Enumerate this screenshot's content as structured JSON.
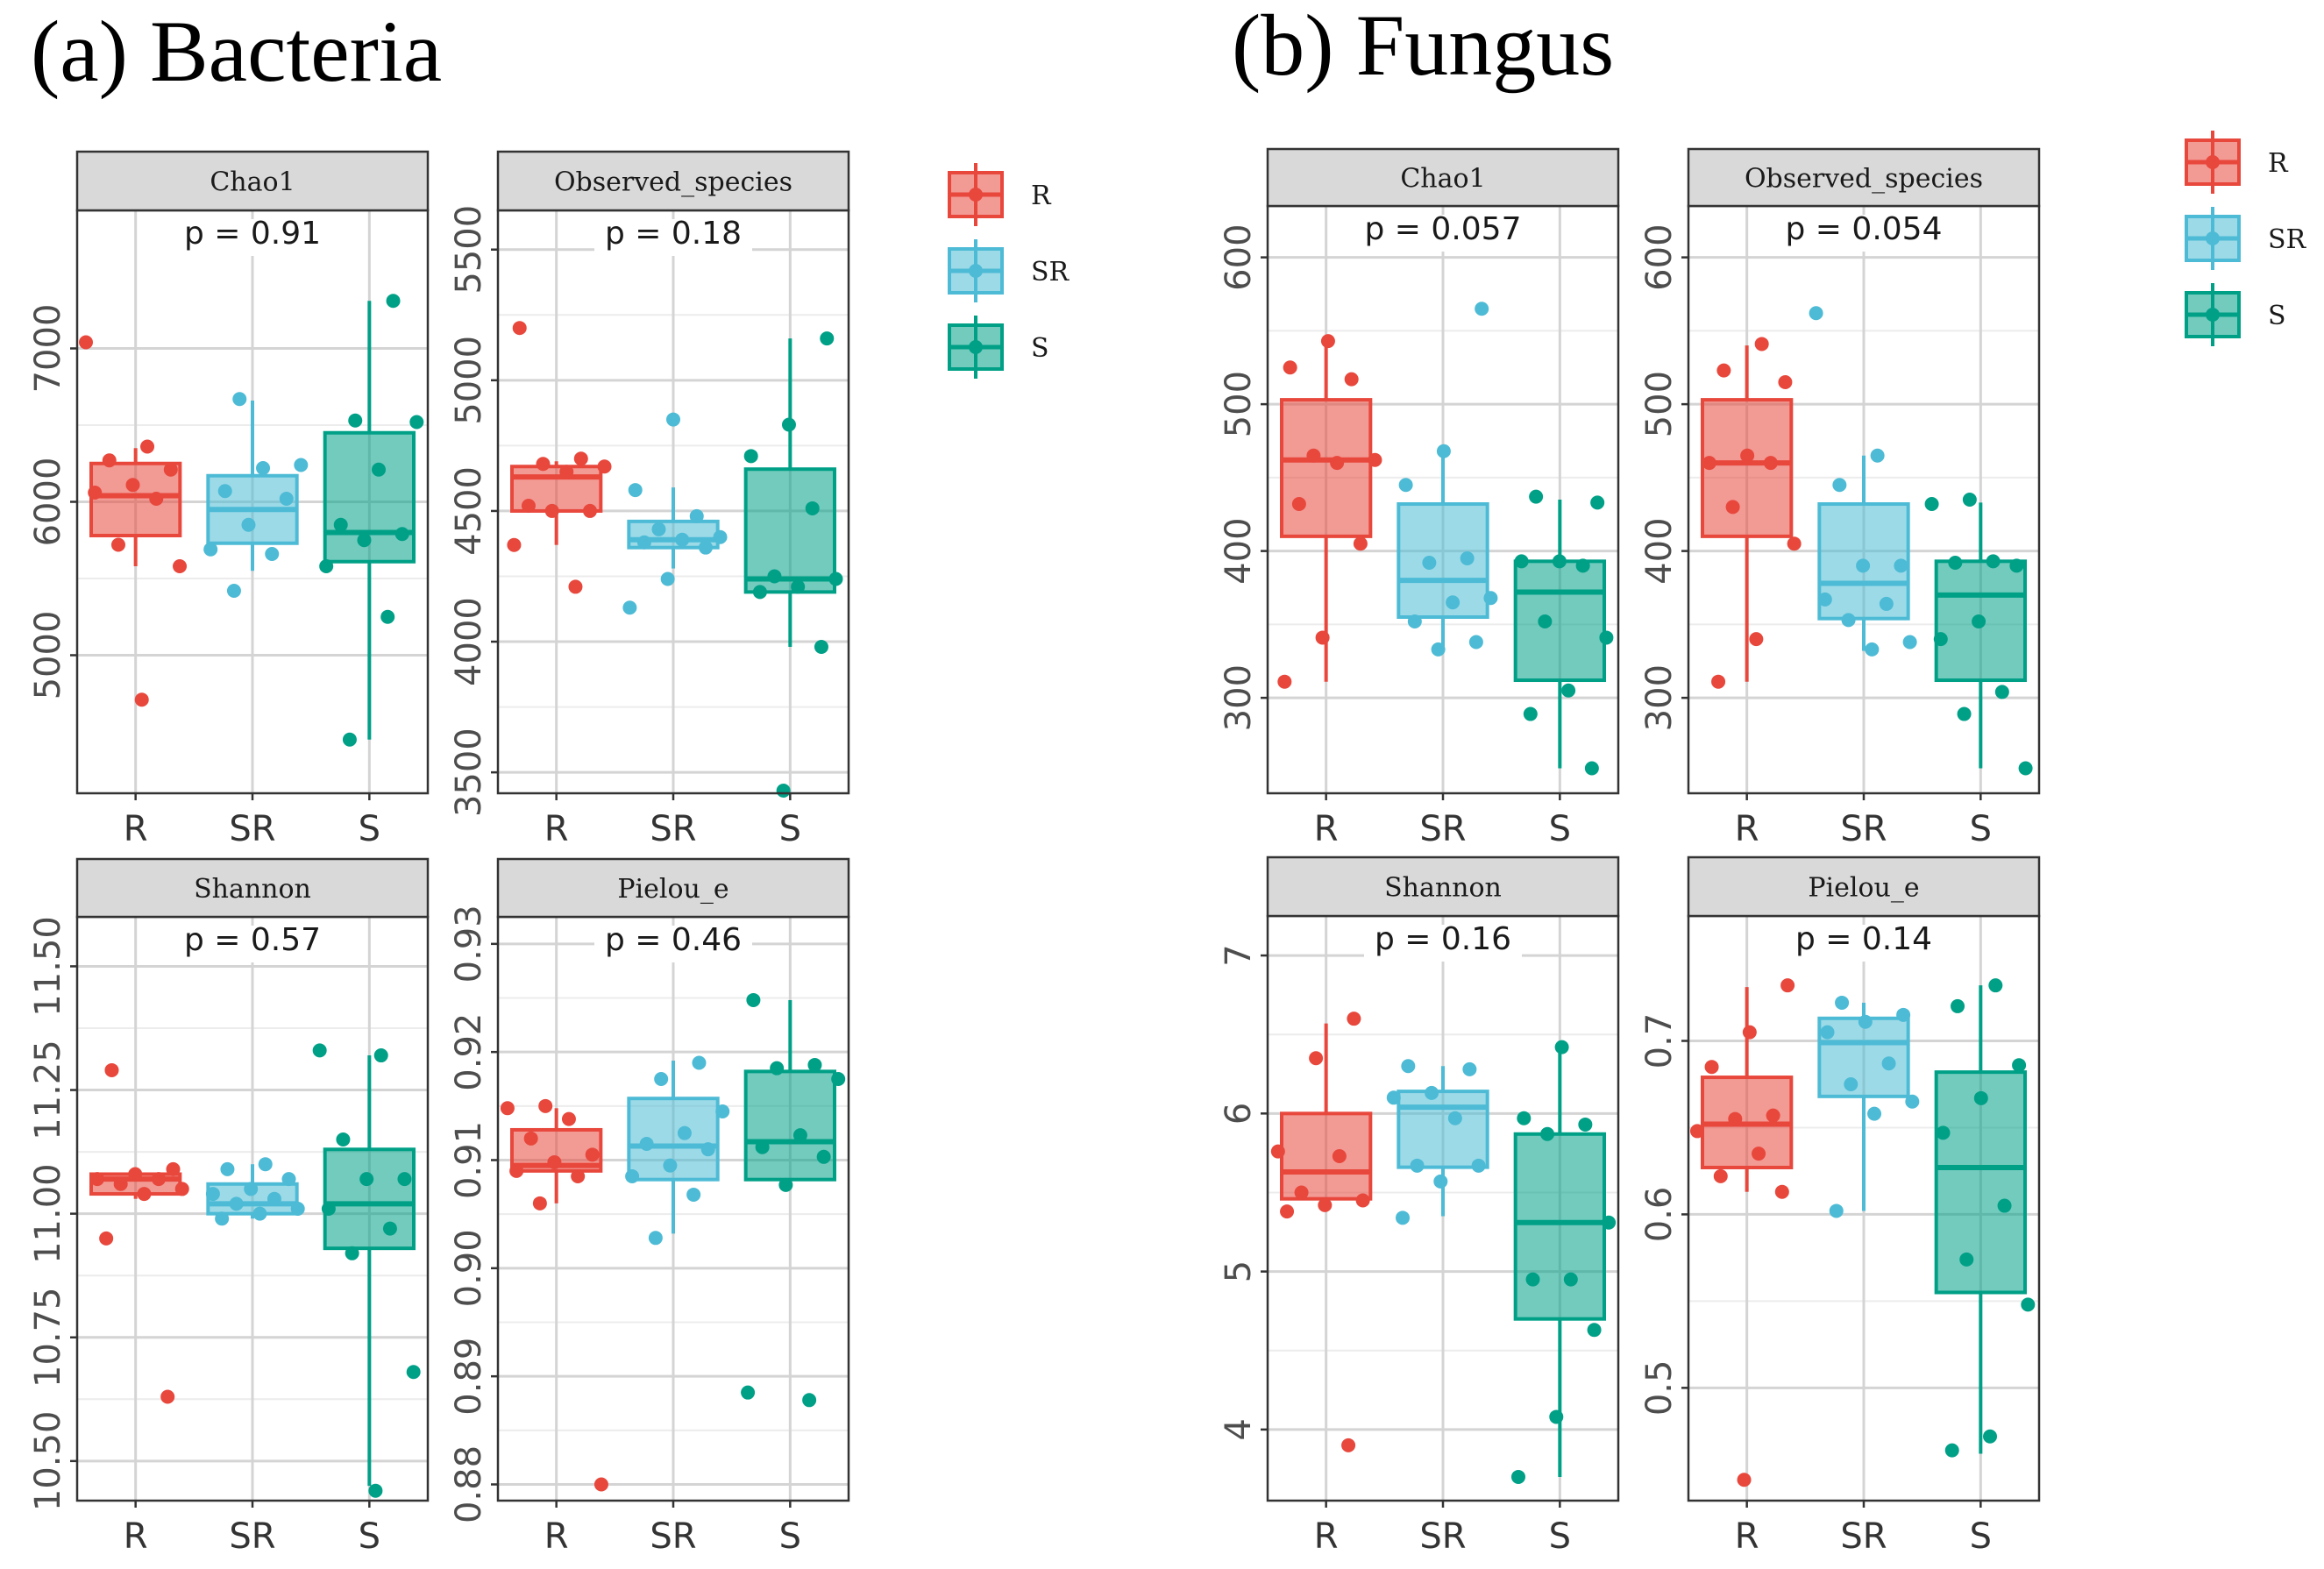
{
  "sections": [
    {
      "title": "(a) Bacteria"
    },
    {
      "title": "(b) Fungus"
    }
  ],
  "groups": [
    "R",
    "SR",
    "S"
  ],
  "colors": {
    "R": "#E8473C",
    "SR": "#4DBBD5",
    "S": "#00A087"
  },
  "legends": [
    {
      "entries": [
        "R",
        "SR",
        "S"
      ]
    },
    {
      "entries": [
        "R",
        "SR",
        "S"
      ]
    }
  ],
  "chart_data": [
    {
      "type": "box",
      "section": "(a) Bacteria",
      "title": "Chao1",
      "p_text": "p = 0.91",
      "categories": [
        "R",
        "SR",
        "S"
      ],
      "ylim": [
        4100,
        7900
      ],
      "yticks": [
        5000,
        6000,
        7000
      ],
      "ytick_labels": [
        "5000",
        "6000",
        "7000"
      ],
      "grid": true,
      "boxes": [
        {
          "group": "R",
          "lower_whisker": 5580,
          "q1": 5780,
          "median": 6040,
          "q3": 6250,
          "upper_whisker": 6350
        },
        {
          "group": "SR",
          "lower_whisker": 5550,
          "q1": 5730,
          "median": 5950,
          "q3": 6170,
          "upper_whisker": 6660
        },
        {
          "group": "S",
          "lower_whisker": 4450,
          "q1": 5610,
          "median": 5800,
          "q3": 6450,
          "upper_whisker": 7310
        }
      ],
      "points": {
        "R": [
          7040,
          6360,
          6270,
          6210,
          6110,
          6060,
          6020,
          5720,
          5580,
          4710
        ],
        "SR": [
          6670,
          6240,
          6220,
          6070,
          6020,
          5850,
          5690,
          5660,
          5420
        ],
        "S": [
          7310,
          6530,
          6520,
          6210,
          5850,
          5790,
          5750,
          5580,
          5250,
          4450
        ]
      }
    },
    {
      "type": "box",
      "section": "(a) Bacteria",
      "title": "Observed_species",
      "p_text": "p = 0.18",
      "categories": [
        "R",
        "SR",
        "S"
      ],
      "ylim": [
        3420,
        5650
      ],
      "yticks": [
        3500,
        4000,
        4500,
        5000,
        5500
      ],
      "ytick_labels": [
        "3500",
        "4000",
        "4500",
        "5000",
        "5500"
      ],
      "grid": true,
      "boxes": [
        {
          "group": "R",
          "lower_whisker": 4370,
          "q1": 4500,
          "median": 4630,
          "q3": 4670,
          "upper_whisker": 4690
        },
        {
          "group": "SR",
          "lower_whisker": 4280,
          "q1": 4360,
          "median": 4390,
          "q3": 4460,
          "upper_whisker": 4590
        },
        {
          "group": "S",
          "lower_whisker": 3980,
          "q1": 4190,
          "median": 4240,
          "q3": 4660,
          "upper_whisker": 5160
        }
      ],
      "points": {
        "R": [
          5200,
          4700,
          4680,
          4670,
          4650,
          4520,
          4500,
          4500,
          4370,
          4210
        ],
        "SR": [
          4850,
          4580,
          4480,
          4430,
          4400,
          4390,
          4380,
          4360,
          4240,
          4130
        ],
        "S": [
          5160,
          4830,
          4710,
          4510,
          4250,
          4240,
          4210,
          4190,
          3980,
          3430
        ]
      }
    },
    {
      "type": "box",
      "section": "(a) Bacteria",
      "title": "Shannon",
      "p_text": "p = 0.57",
      "categories": [
        "R",
        "SR",
        "S"
      ],
      "ylim": [
        10.42,
        11.6
      ],
      "yticks": [
        10.5,
        10.75,
        11.0,
        11.25,
        11.5
      ],
      "ytick_labels": [
        "10.50",
        "10.75",
        "11.00",
        "11.25",
        "11.50"
      ],
      "grid": true,
      "boxes": [
        {
          "group": "R",
          "lower_whisker": 11.03,
          "q1": 11.04,
          "median": 11.07,
          "q3": 11.08,
          "upper_whisker": 11.09
        },
        {
          "group": "SR",
          "lower_whisker": 10.99,
          "q1": 11.0,
          "median": 11.02,
          "q3": 11.06,
          "upper_whisker": 11.1
        },
        {
          "group": "S",
          "lower_whisker": 10.45,
          "q1": 10.93,
          "median": 11.02,
          "q3": 11.13,
          "upper_whisker": 11.32
        }
      ],
      "points": {
        "R": [
          11.29,
          11.09,
          11.08,
          11.07,
          11.07,
          11.06,
          11.05,
          11.04,
          10.95,
          10.63
        ],
        "SR": [
          11.1,
          11.09,
          11.07,
          11.05,
          11.04,
          11.03,
          11.02,
          11.01,
          11.0,
          10.99
        ],
        "S": [
          11.33,
          11.32,
          11.15,
          11.07,
          11.07,
          11.01,
          10.97,
          10.92,
          10.68,
          10.44
        ]
      }
    },
    {
      "type": "box",
      "section": "(a) Bacteria",
      "title": "Pielou_e",
      "p_text": "p = 0.46",
      "categories": [
        "R",
        "SR",
        "S"
      ],
      "ylim": [
        0.8785,
        0.9325
      ],
      "yticks": [
        0.88,
        0.89,
        0.9,
        0.91,
        0.92,
        0.93
      ],
      "ytick_labels": [
        "0.88",
        "0.89",
        "0.90",
        "0.91",
        "0.92",
        "0.93"
      ],
      "grid": true,
      "boxes": [
        {
          "group": "R",
          "lower_whisker": 0.906,
          "q1": 0.909,
          "median": 0.9095,
          "q3": 0.9128,
          "upper_whisker": 0.9148
        },
        {
          "group": "SR",
          "lower_whisker": 0.9032,
          "q1": 0.9082,
          "median": 0.9113,
          "q3": 0.9157,
          "upper_whisker": 0.9192
        },
        {
          "group": "S",
          "lower_whisker": 0.9077,
          "q1": 0.9082,
          "median": 0.9117,
          "q3": 0.9182,
          "upper_whisker": 0.9248
        }
      ],
      "points": {
        "R": [
          0.915,
          0.9148,
          0.9138,
          0.912,
          0.9105,
          0.9098,
          0.909,
          0.9085,
          0.906,
          0.88
        ],
        "SR": [
          0.919,
          0.9175,
          0.9145,
          0.9125,
          0.9115,
          0.911,
          0.9095,
          0.9085,
          0.9068,
          0.9028
        ],
        "S": [
          0.9248,
          0.9188,
          0.9185,
          0.9175,
          0.9123,
          0.9112,
          0.9103,
          0.9077,
          0.8885,
          0.8878
        ]
      }
    },
    {
      "type": "box",
      "section": "(b) Fungus",
      "title": "Chao1",
      "p_text": "p = 0.057",
      "categories": [
        "R",
        "SR",
        "S"
      ],
      "ylim": [
        235,
        635
      ],
      "yticks": [
        300,
        400,
        500,
        600
      ],
      "ytick_labels": [
        "300",
        "400",
        "500",
        "600"
      ],
      "grid": true,
      "boxes": [
        {
          "group": "R",
          "lower_whisker": 311,
          "q1": 410,
          "median": 462,
          "q3": 503,
          "upper_whisker": 543
        },
        {
          "group": "SR",
          "lower_whisker": 332,
          "q1": 355,
          "median": 380,
          "q3": 432,
          "upper_whisker": 468
        },
        {
          "group": "S",
          "lower_whisker": 252,
          "q1": 312,
          "median": 372,
          "q3": 393,
          "upper_whisker": 435
        }
      ],
      "points": {
        "R": [
          543,
          525,
          517,
          465,
          462,
          460,
          432,
          405,
          341,
          311
        ],
        "SR": [
          565,
          468,
          445,
          395,
          392,
          368,
          365,
          352,
          338,
          333
        ],
        "S": [
          437,
          433,
          393,
          393,
          390,
          352,
          341,
          305,
          289,
          252
        ]
      }
    },
    {
      "type": "box",
      "section": "(b) Fungus",
      "title": "Observed_species",
      "p_text": "p = 0.054",
      "categories": [
        "R",
        "SR",
        "S"
      ],
      "ylim": [
        235,
        635
      ],
      "yticks": [
        300,
        400,
        500,
        600
      ],
      "ytick_labels": [
        "300",
        "400",
        "500",
        "600"
      ],
      "grid": true,
      "boxes": [
        {
          "group": "R",
          "lower_whisker": 311,
          "q1": 410,
          "median": 460,
          "q3": 503,
          "upper_whisker": 540
        },
        {
          "group": "SR",
          "lower_whisker": 332,
          "q1": 354,
          "median": 378,
          "q3": 432,
          "upper_whisker": 465
        },
        {
          "group": "S",
          "lower_whisker": 252,
          "q1": 312,
          "median": 370,
          "q3": 393,
          "upper_whisker": 433
        }
      ],
      "points": {
        "R": [
          541,
          523,
          515,
          465,
          460,
          460,
          430,
          405,
          340,
          311
        ],
        "SR": [
          562,
          465,
          445,
          390,
          390,
          367,
          364,
          353,
          338,
          333
        ],
        "S": [
          435,
          432,
          393,
          392,
          390,
          352,
          340,
          304,
          289,
          252
        ]
      }
    },
    {
      "type": "box",
      "section": "(b) Fungus",
      "title": "Shannon",
      "p_text": "p = 0.16",
      "categories": [
        "R",
        "SR",
        "S"
      ],
      "ylim": [
        3.55,
        7.25
      ],
      "yticks": [
        4,
        5,
        6,
        7
      ],
      "ytick_labels": [
        "4",
        "5",
        "6",
        "7"
      ],
      "grid": true,
      "boxes": [
        {
          "group": "R",
          "lower_whisker": 5.38,
          "q1": 5.46,
          "median": 5.63,
          "q3": 6.0,
          "upper_whisker": 6.57
        },
        {
          "group": "SR",
          "lower_whisker": 5.35,
          "q1": 5.66,
          "median": 6.04,
          "q3": 6.14,
          "upper_whisker": 6.3
        },
        {
          "group": "S",
          "lower_whisker": 3.7,
          "q1": 4.7,
          "median": 5.31,
          "q3": 5.87,
          "upper_whisker": 6.4
        }
      ],
      "points": {
        "R": [
          6.6,
          6.35,
          5.76,
          5.73,
          5.5,
          5.45,
          5.42,
          5.38,
          3.9
        ],
        "SR": [
          6.3,
          6.28,
          6.13,
          6.1,
          5.97,
          5.67,
          5.67,
          5.57,
          5.34
        ],
        "S": [
          6.42,
          5.97,
          5.93,
          5.87,
          5.31,
          4.95,
          4.95,
          4.63,
          4.08,
          3.7
        ]
      }
    },
    {
      "type": "box",
      "section": "(b) Fungus",
      "title": "Pielou_e",
      "p_text": "p = 0.14",
      "categories": [
        "R",
        "SR",
        "S"
      ],
      "ylim": [
        0.435,
        0.772
      ],
      "yticks": [
        0.5,
        0.6,
        0.7
      ],
      "ytick_labels": [
        "0.5",
        "0.6",
        "0.7"
      ],
      "grid": true,
      "boxes": [
        {
          "group": "R",
          "lower_whisker": 0.613,
          "q1": 0.627,
          "median": 0.652,
          "q3": 0.679,
          "upper_whisker": 0.731
        },
        {
          "group": "SR",
          "lower_whisker": 0.602,
          "q1": 0.668,
          "median": 0.699,
          "q3": 0.713,
          "upper_whisker": 0.722
        },
        {
          "group": "S",
          "lower_whisker": 0.462,
          "q1": 0.555,
          "median": 0.627,
          "q3": 0.682,
          "upper_whisker": 0.732
        }
      ],
      "points": {
        "R": [
          0.732,
          0.705,
          0.685,
          0.657,
          0.655,
          0.648,
          0.635,
          0.622,
          0.613,
          0.447
        ],
        "SR": [
          0.722,
          0.715,
          0.711,
          0.705,
          0.687,
          0.675,
          0.665,
          0.658,
          0.602
        ],
        "S": [
          0.732,
          0.72,
          0.686,
          0.667,
          0.647,
          0.605,
          0.574,
          0.548,
          0.472,
          0.464
        ]
      }
    }
  ]
}
